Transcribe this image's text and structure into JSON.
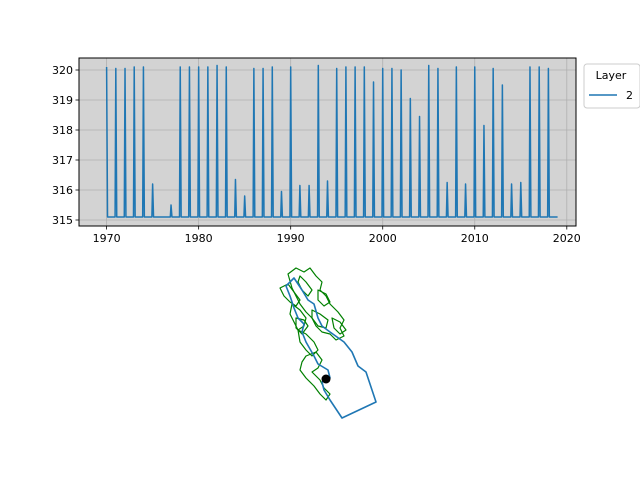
{
  "chart_data": [
    {
      "type": "line",
      "title": "",
      "xlabel": "",
      "ylabel": "",
      "xlim": [
        1967,
        2021
      ],
      "ylim": [
        314.8,
        320.4
      ],
      "xticks": [
        1970,
        1980,
        1990,
        2000,
        2010,
        2020
      ],
      "yticks": [
        315,
        316,
        317,
        318,
        319,
        320
      ],
      "grid": true,
      "background": "#d3d3d3",
      "legend": {
        "title": "Layer",
        "placement": "outside-top-right",
        "entries": [
          "2"
        ]
      },
      "series": [
        {
          "name": "2",
          "color": "#1f77b4",
          "baseline": 315.1,
          "x_start": 1970,
          "x_end": 2019,
          "peaks": [
            [
              1970.0,
              320.1
            ],
            [
              1971.0,
              320.05
            ],
            [
              1972.0,
              320.05
            ],
            [
              1973.0,
              320.1
            ],
            [
              1974.0,
              320.1
            ],
            [
              1975.0,
              316.2
            ],
            [
              1977.0,
              315.5
            ],
            [
              1978.0,
              320.1
            ],
            [
              1979.0,
              320.1
            ],
            [
              1980.0,
              320.1
            ],
            [
              1981.0,
              320.1
            ],
            [
              1982.0,
              320.15
            ],
            [
              1983.0,
              320.1
            ],
            [
              1984.0,
              316.35
            ],
            [
              1985.0,
              315.8
            ],
            [
              1986.0,
              320.05
            ],
            [
              1987.0,
              320.05
            ],
            [
              1988.0,
              320.1
            ],
            [
              1989.0,
              315.95
            ],
            [
              1990.0,
              320.1
            ],
            [
              1991.0,
              316.15
            ],
            [
              1992.0,
              316.15
            ],
            [
              1993.0,
              320.15
            ],
            [
              1994.0,
              316.3
            ],
            [
              1995.0,
              320.05
            ],
            [
              1996.0,
              320.1
            ],
            [
              1997.0,
              320.1
            ],
            [
              1998.0,
              320.1
            ],
            [
              1999.0,
              319.6
            ],
            [
              2000.0,
              320.05
            ],
            [
              2001.0,
              320.05
            ],
            [
              2002.0,
              320.0
            ],
            [
              2003.0,
              319.05
            ],
            [
              2004.0,
              318.45
            ],
            [
              2005.0,
              320.15
            ],
            [
              2006.0,
              320.05
            ],
            [
              2007.0,
              316.25
            ],
            [
              2008.0,
              320.1
            ],
            [
              2009.0,
              316.2
            ],
            [
              2010.0,
              320.1
            ],
            [
              2011.0,
              318.15
            ],
            [
              2012.0,
              320.05
            ],
            [
              2013.0,
              319.5
            ],
            [
              2014.0,
              316.2
            ],
            [
              2015.0,
              316.25
            ],
            [
              2016.0,
              320.1
            ],
            [
              2017.0,
              320.1
            ],
            [
              2018.0,
              320.05
            ]
          ]
        }
      ]
    },
    {
      "type": "map",
      "title": "",
      "layers": [
        {
          "name": "",
          "color": "#1f77b4",
          "kind": "model-grid-outline"
        },
        {
          "name": "",
          "color": "#008000",
          "kind": "polygons"
        },
        {
          "name": "",
          "color": "#000000",
          "kind": "point"
        }
      ]
    }
  ]
}
